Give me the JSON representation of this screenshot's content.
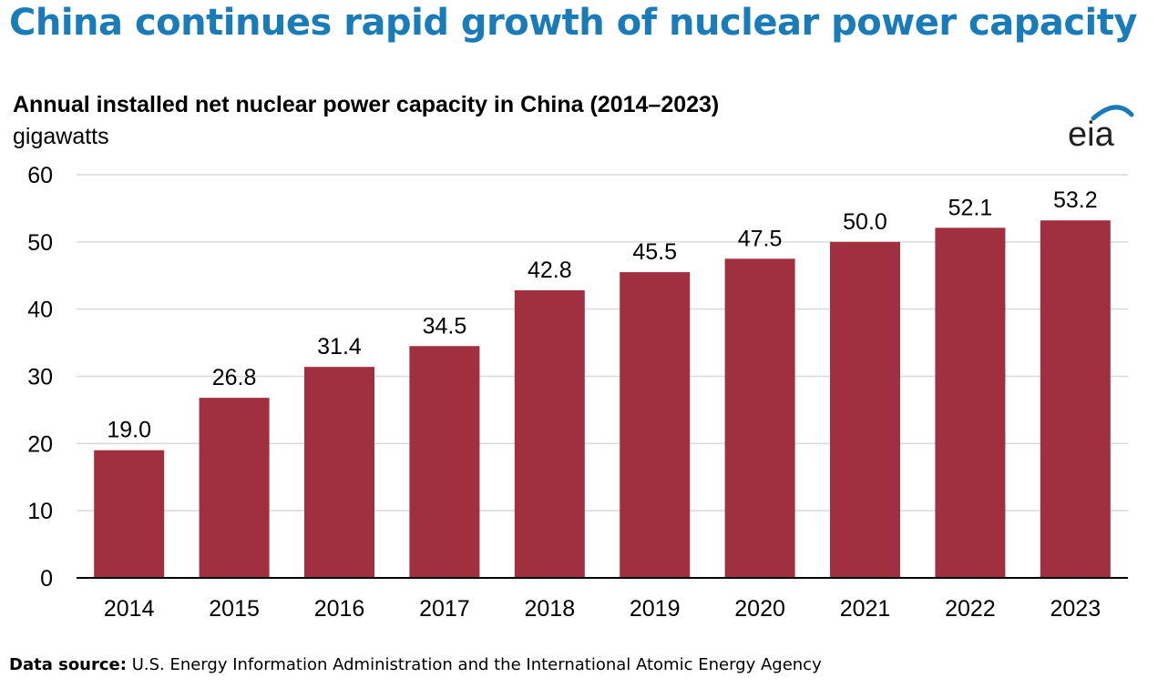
{
  "headline": "China continues rapid growth of nuclear power capacity",
  "logo_text": "eia",
  "source": {
    "label": "Data source:",
    "text": "U.S. Energy Information Administration and the International Atomic Energy Agency"
  },
  "colors": {
    "headline": "#1a7bb9",
    "bar": "#a03040",
    "grid": "#d9d9d9",
    "axis": "#000000"
  },
  "chart_data": {
    "type": "bar",
    "title": "Annual installed net nuclear power capacity in China (2014–2023)",
    "ylabel": "gigawatts",
    "xlabel": "",
    "categories": [
      "2014",
      "2015",
      "2016",
      "2017",
      "2018",
      "2019",
      "2020",
      "2021",
      "2022",
      "2023"
    ],
    "values": [
      19.0,
      26.8,
      31.4,
      34.5,
      42.8,
      45.5,
      47.5,
      50.0,
      52.1,
      53.2
    ],
    "value_labels": [
      "19.0",
      "26.8",
      "31.4",
      "34.5",
      "42.8",
      "45.5",
      "47.5",
      "50.0",
      "52.1",
      "53.2"
    ],
    "ylim": [
      0,
      60
    ],
    "yticks": [
      "0",
      "10",
      "20",
      "30",
      "40",
      "50",
      "60"
    ],
    "grid": true,
    "legend": "none"
  }
}
